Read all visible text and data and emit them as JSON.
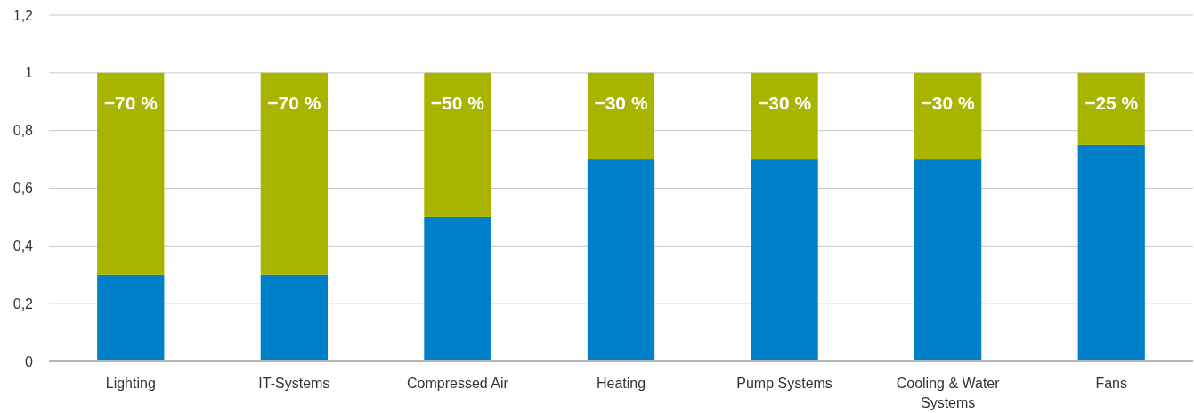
{
  "chart_data": {
    "type": "bar",
    "stacked": true,
    "grid": "y",
    "annotations": [
      {
        "text": "−70 %",
        "x": "Lighting",
        "y": 1
      },
      {
        "text": "−70 %",
        "x": "IT-Systems",
        "y": 1
      },
      {
        "text": "−50 %",
        "x": "Compressed Air",
        "y": 1
      },
      {
        "text": "−30 %",
        "x": "Heating",
        "y": 1
      },
      {
        "text": "−30 %",
        "x": "Pump Systems",
        "y": 1
      },
      {
        "text": "−30 %",
        "x": "Cooling & Water Systems",
        "y": 1
      },
      {
        "text": "−25 %",
        "x": "Fans",
        "y": 1
      }
    ],
    "categories": [
      "Lighting",
      "IT-Systems",
      "Compressed Air",
      "Heating",
      "Pump Systems",
      "Cooling & Water Systems",
      "Fans"
    ],
    "series": [
      {
        "color": "#0080c9",
        "values": [
          0.3,
          0.3,
          0.5,
          0.7,
          0.7,
          0.7,
          0.75
        ]
      },
      {
        "color": "#a8b400",
        "values": [
          0.7,
          0.7,
          0.5,
          0.3,
          0.3,
          0.3,
          0.25
        ]
      }
    ],
    "ylim": [
      0,
      1.2
    ],
    "yticks": [
      0,
      {
        "value": 0.2,
        "label": "0,2"
      },
      {
        "value": 0.4,
        "label": "0,4"
      },
      {
        "value": 0.6,
        "label": "0,6"
      },
      {
        "value": 0.8,
        "label": "0,8"
      },
      1,
      {
        "value": 1.2,
        "label": "1,2"
      }
    ]
  }
}
